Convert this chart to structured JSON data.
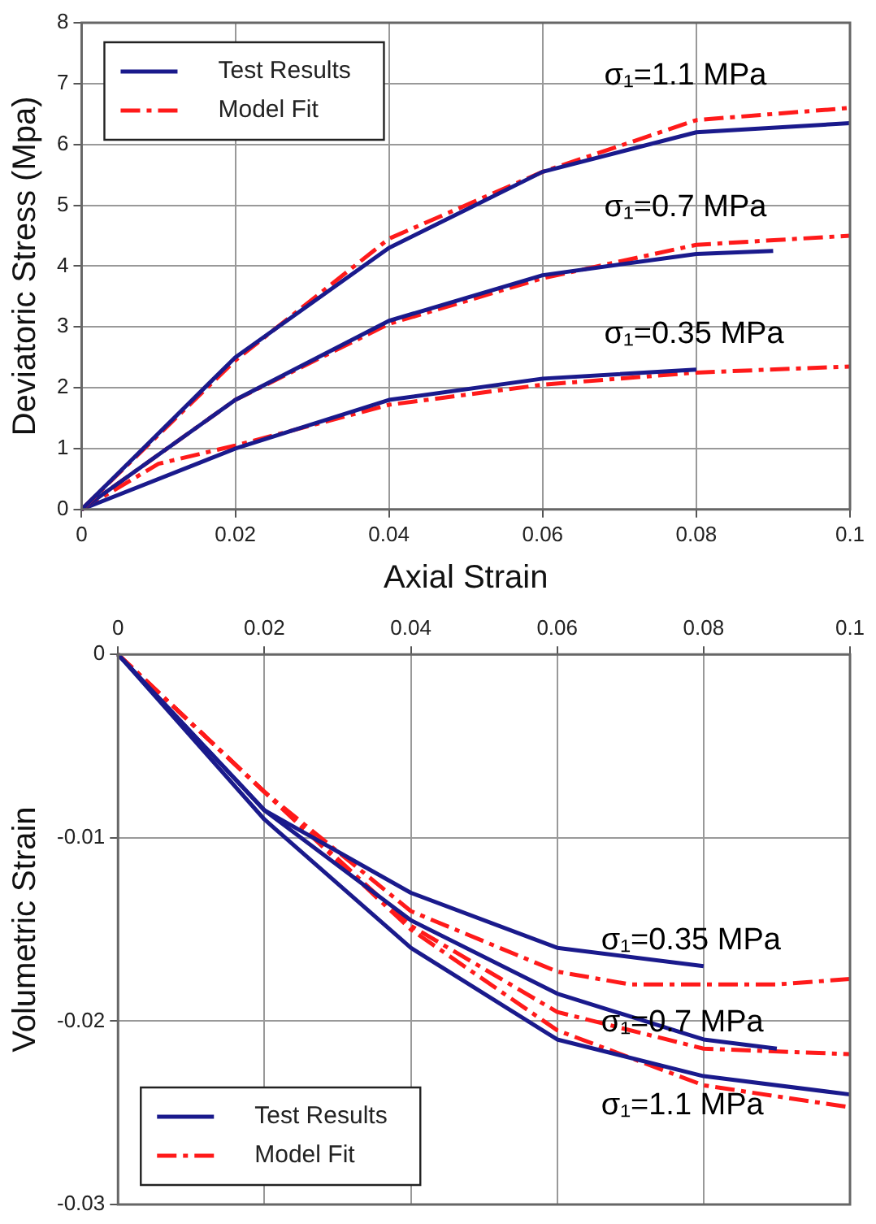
{
  "chart_data": [
    {
      "type": "line",
      "xlabel": "Axial Strain",
      "ylabel": "Deviatoric Stress (Mpa)",
      "xlim": [
        0,
        0.1
      ],
      "xticks": [
        0,
        0.02,
        0.04,
        0.06,
        0.08,
        0.1
      ],
      "ylim": [
        0,
        8
      ],
      "yticks": [
        0,
        1,
        2,
        3,
        4,
        5,
        6,
        7,
        8
      ],
      "grid": true,
      "legend": "top left",
      "series": [
        {
          "name": "Test Results",
          "color": "#1a1a8c",
          "line_style": "solid",
          "x": [
            0,
            0.02,
            0.04,
            0.06,
            0.08,
            0.1
          ],
          "values": [
            0,
            2.5,
            4.3,
            5.55,
            6.2,
            6.35
          ]
        },
        {
          "name": "Model Fit",
          "color": "#ff1a1a",
          "line_style": "dashed",
          "x": [
            0,
            0.02,
            0.04,
            0.06,
            0.08,
            0.1
          ],
          "values": [
            0,
            2.45,
            4.45,
            5.55,
            6.4,
            6.6
          ]
        },
        {
          "color": "#1a1a8c",
          "line_style": "solid",
          "x": [
            0,
            0.02,
            0.04,
            0.06,
            0.08,
            0.09
          ],
          "values": [
            0,
            1.8,
            3.1,
            3.85,
            4.2,
            4.25
          ]
        },
        {
          "color": "#ff1a1a",
          "line_style": "dashed",
          "x": [
            0,
            0.02,
            0.04,
            0.06,
            0.08,
            0.1
          ],
          "values": [
            0,
            1.8,
            3.05,
            3.8,
            4.35,
            4.5
          ]
        },
        {
          "color": "#1a1a8c",
          "line_style": "solid",
          "x": [
            0,
            0.02,
            0.04,
            0.06,
            0.08
          ],
          "values": [
            0,
            1.0,
            1.8,
            2.15,
            2.3
          ]
        },
        {
          "color": "#ff1a1a",
          "line_style": "dashed",
          "x": [
            0,
            0.01,
            0.02,
            0.04,
            0.06,
            0.08,
            0.1
          ],
          "values": [
            0,
            0.75,
            1.05,
            1.72,
            2.05,
            2.25,
            2.35
          ]
        }
      ],
      "annotations": [
        "σ₁=1.1 MPa",
        "σ₁=0.7 MPa",
        "σ₁=0.35 MPa"
      ]
    },
    {
      "type": "line",
      "ylabel": "Volumetric Strain",
      "xlim": [
        0,
        0.1
      ],
      "xticks": [
        0,
        0.02,
        0.04,
        0.06,
        0.08,
        0.1
      ],
      "ylim": [
        -0.03,
        0
      ],
      "yticks": [
        -0.03,
        -0.02,
        -0.01,
        0
      ],
      "grid": true,
      "legend": "bottom left",
      "series": [
        {
          "name": "Test Results",
          "color": "#1a1a8c",
          "line_style": "solid",
          "x": [
            0,
            0.02,
            0.04,
            0.06,
            0.08
          ],
          "values": [
            0,
            -0.0085,
            -0.013,
            -0.016,
            -0.017
          ]
        },
        {
          "name": "Model Fit",
          "color": "#ff1a1a",
          "line_style": "dashed",
          "x": [
            0,
            0.02,
            0.04,
            0.06,
            0.07,
            0.08,
            0.09,
            0.1
          ],
          "values": [
            0,
            -0.0075,
            -0.014,
            -0.0173,
            -0.018,
            -0.018,
            -0.018,
            -0.0177
          ]
        },
        {
          "color": "#1a1a8c",
          "line_style": "solid",
          "x": [
            0,
            0.02,
            0.04,
            0.06,
            0.08,
            0.09
          ],
          "values": [
            0,
            -0.0085,
            -0.0145,
            -0.0185,
            -0.021,
            -0.0215
          ]
        },
        {
          "color": "#ff1a1a",
          "line_style": "dashed",
          "x": [
            0,
            0.02,
            0.04,
            0.06,
            0.08,
            0.1
          ],
          "values": [
            0,
            -0.0075,
            -0.0148,
            -0.0195,
            -0.0215,
            -0.0218
          ]
        },
        {
          "color": "#1a1a8c",
          "line_style": "solid",
          "x": [
            0,
            0.02,
            0.04,
            0.06,
            0.08,
            0.1
          ],
          "values": [
            0,
            -0.009,
            -0.016,
            -0.021,
            -0.023,
            -0.024
          ]
        },
        {
          "color": "#ff1a1a",
          "line_style": "dashed",
          "x": [
            0,
            0.02,
            0.04,
            0.06,
            0.08,
            0.1
          ],
          "values": [
            0,
            -0.0075,
            -0.015,
            -0.0205,
            -0.0235,
            -0.0247
          ]
        }
      ],
      "annotations": [
        "σ₁=0.35 MPa",
        "σ₁=0.7 MPa",
        "σ₁=1.1 MPa"
      ]
    }
  ]
}
